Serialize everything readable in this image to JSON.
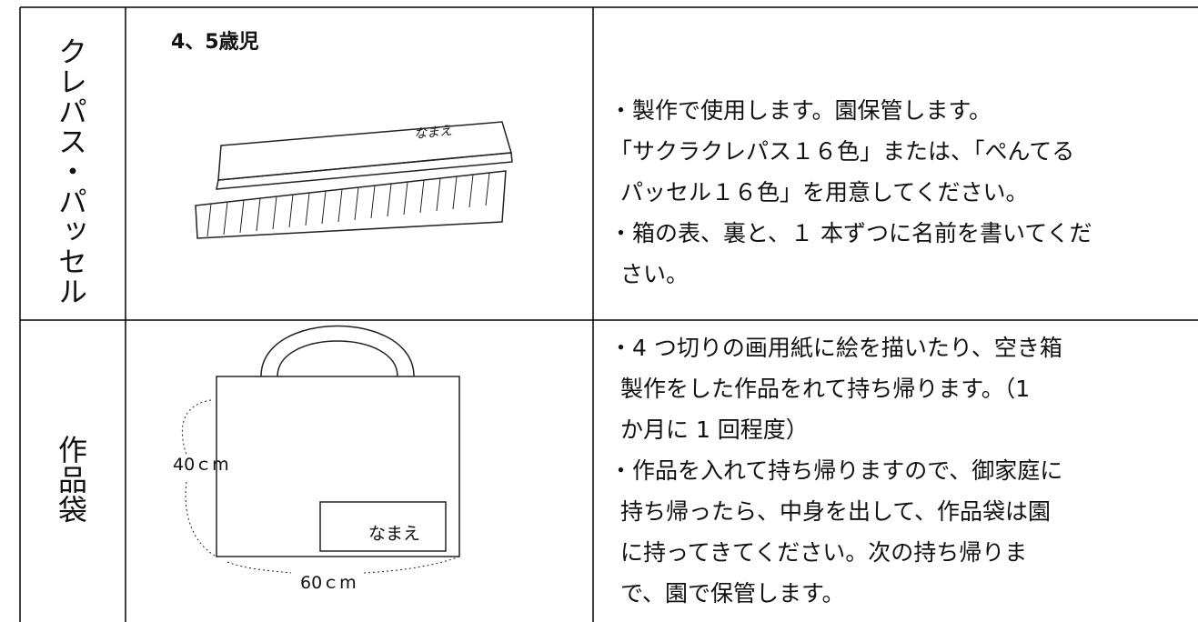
{
  "table": {
    "rows": [
      {
        "label": "クレパス・パッセル",
        "age": "4、5歳児",
        "drawing_label": "なまえ",
        "lines": [
          "・製作で使用します。園保管します。",
          "「サクラクレパス１６色」または、「ぺんてる",
          "パッセル１６色」を用意してください。",
          "・箱の表、裏と、１ 本ずつに名前を書いてくだ",
          "さい。"
        ]
      },
      {
        "label": "作品袋",
        "height_label": "40ｃm",
        "width_label": "60ｃm",
        "drawing_label": "なまえ",
        "lines": [
          "・4 つ切りの画用紙に絵を描いたり、空き箱",
          "製作をした作品をれて持ち帰ります。（1",
          "か月に 1 回程度）",
          "・作品を入れて持ち帰りますので、御家庭に",
          "持ち帰ったら、中身を出して、作品袋は園",
          "に持ってきてください。次の持ち帰りま",
          "で、園で保管します。"
        ]
      }
    ]
  }
}
